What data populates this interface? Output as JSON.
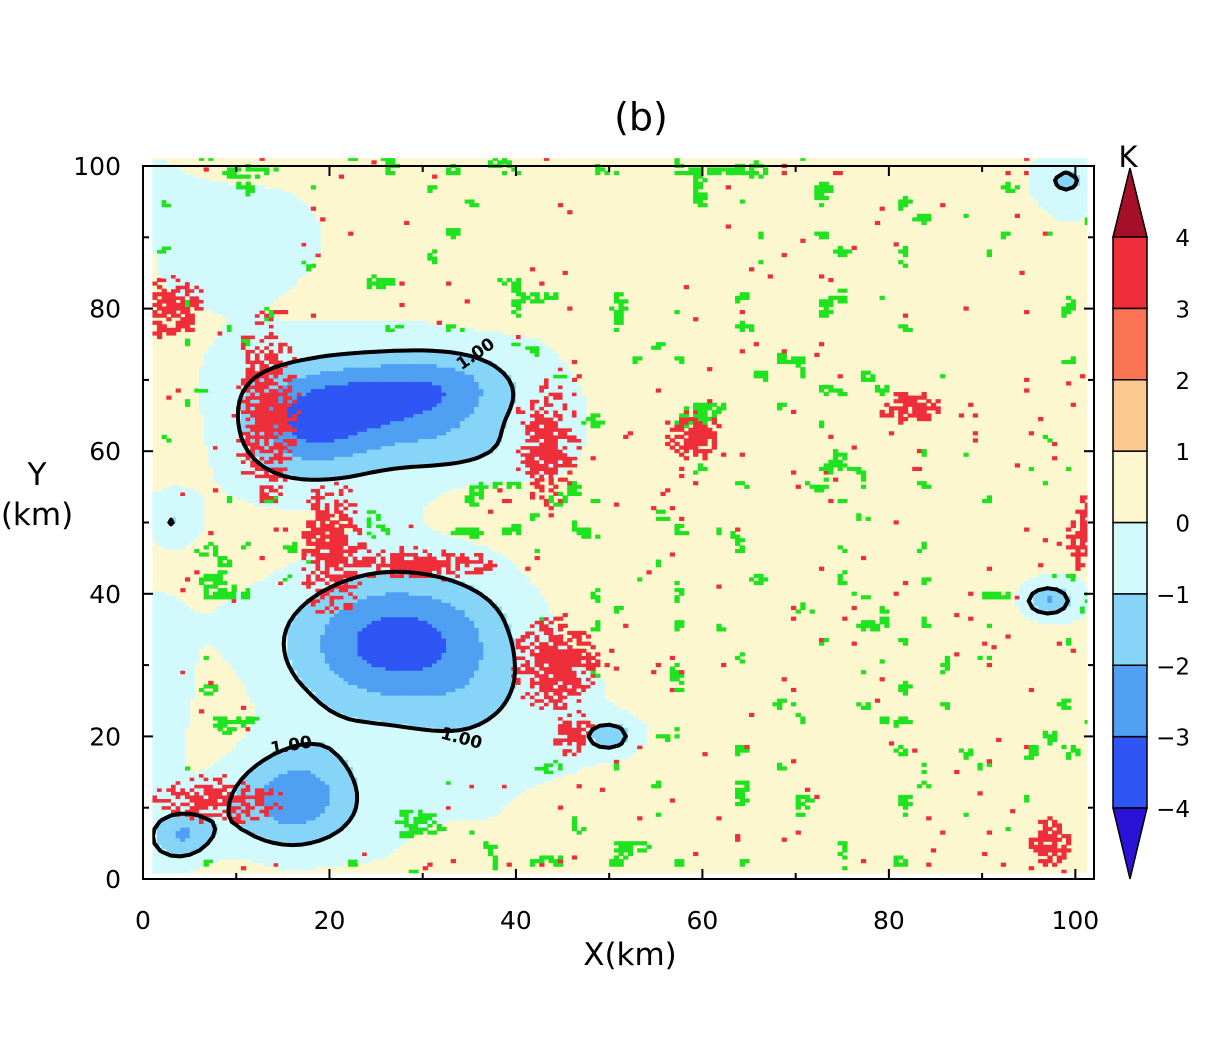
{
  "chart_data": {
    "type": "heatmap",
    "title": "(b)",
    "xlabel": "X(km)",
    "ylabel_line1": "Y",
    "ylabel_line2": "(km)",
    "xlim": [
      0,
      102
    ],
    "ylim": [
      0,
      100
    ],
    "x_ticks": [
      0,
      20,
      40,
      60,
      80,
      100
    ],
    "y_ticks": [
      0,
      20,
      40,
      60,
      80,
      100
    ],
    "x_ticks_minor": [
      10,
      30,
      50,
      70,
      90
    ],
    "y_ticks_minor": [
      10,
      30,
      50,
      70,
      90
    ],
    "colorbar": {
      "unit": "K",
      "levels": [
        -4,
        -3,
        -2,
        -1,
        0,
        1,
        2,
        3,
        4
      ],
      "level_labels": [
        "−4",
        "−3",
        "−2",
        "−1",
        "0",
        "1",
        "2",
        "3",
        "4"
      ],
      "colors": [
        "#2a12d6",
        "#2f56f5",
        "#4f9ff2",
        "#86d4f7",
        "#d2fafc",
        "#fdf7d0",
        "#fcc98e",
        "#fa7353",
        "#ee2f3a",
        "#a50f28"
      ],
      "extend": "both"
    },
    "contour": {
      "level": 1.0,
      "label": "1.00",
      "color": "#000000"
    },
    "overlay_color": "#1fe31f",
    "cold_pools": [
      {
        "cx": 18,
        "cy": 64,
        "rx": 9,
        "ry": 9,
        "min": -3.6
      },
      {
        "cx": 30,
        "cy": 68,
        "rx": 11,
        "ry": 7,
        "min": -3.2
      },
      {
        "cx": 34,
        "cy": 60,
        "rx": 9,
        "ry": 5,
        "min": -1.2
      },
      {
        "cx": 27,
        "cy": 33,
        "rx": 13,
        "ry": 11,
        "min": -3.9
      },
      {
        "cx": 16,
        "cy": 11,
        "rx": 8,
        "ry": 8,
        "min": -2.8
      },
      {
        "cx": 4,
        "cy": 6,
        "rx": 4,
        "ry": 4,
        "min": -2.2
      },
      {
        "cx": 50,
        "cy": 20,
        "rx": 3,
        "ry": 2.5,
        "min": -1.8
      },
      {
        "cx": 97,
        "cy": 39,
        "rx": 3,
        "ry": 2.5,
        "min": -2.2
      },
      {
        "cx": 99,
        "cy": 98,
        "rx": 4,
        "ry": 4,
        "min": -1.6
      },
      {
        "cx": 3,
        "cy": 50,
        "rx": 3,
        "ry": 4,
        "min": -1.3
      },
      {
        "cx": 1,
        "cy": 25,
        "rx": 4,
        "ry": 15,
        "min": -0.8
      },
      {
        "cx": 8,
        "cy": 90,
        "rx": 9,
        "ry": 10,
        "min": -0.8
      },
      {
        "cx": 35,
        "cy": 20,
        "rx": 14,
        "ry": 9,
        "min": -0.7
      }
    ],
    "warm_strips": [
      {
        "cx": 13,
        "cy": 66,
        "rx": 3,
        "ry": 12
      },
      {
        "cx": 20,
        "cy": 46,
        "rx": 3,
        "ry": 9
      },
      {
        "cx": 29,
        "cy": 44,
        "rx": 8,
        "ry": 2
      },
      {
        "cx": 44,
        "cy": 30,
        "rx": 4,
        "ry": 6
      },
      {
        "cx": 43,
        "cy": 61,
        "rx": 3,
        "ry": 8
      },
      {
        "cx": 8,
        "cy": 11,
        "rx": 6,
        "ry": 3
      },
      {
        "cx": 46,
        "cy": 20,
        "rx": 2,
        "ry": 3
      },
      {
        "cx": 101,
        "cy": 48,
        "rx": 2,
        "ry": 5
      },
      {
        "cx": 97,
        "cy": 5,
        "rx": 2,
        "ry": 3
      },
      {
        "cx": 59,
        "cy": 62,
        "rx": 3,
        "ry": 3
      },
      {
        "cx": 82,
        "cy": 66,
        "rx": 3,
        "ry": 2
      },
      {
        "cx": 3,
        "cy": 80,
        "rx": 3,
        "ry": 4
      }
    ]
  }
}
